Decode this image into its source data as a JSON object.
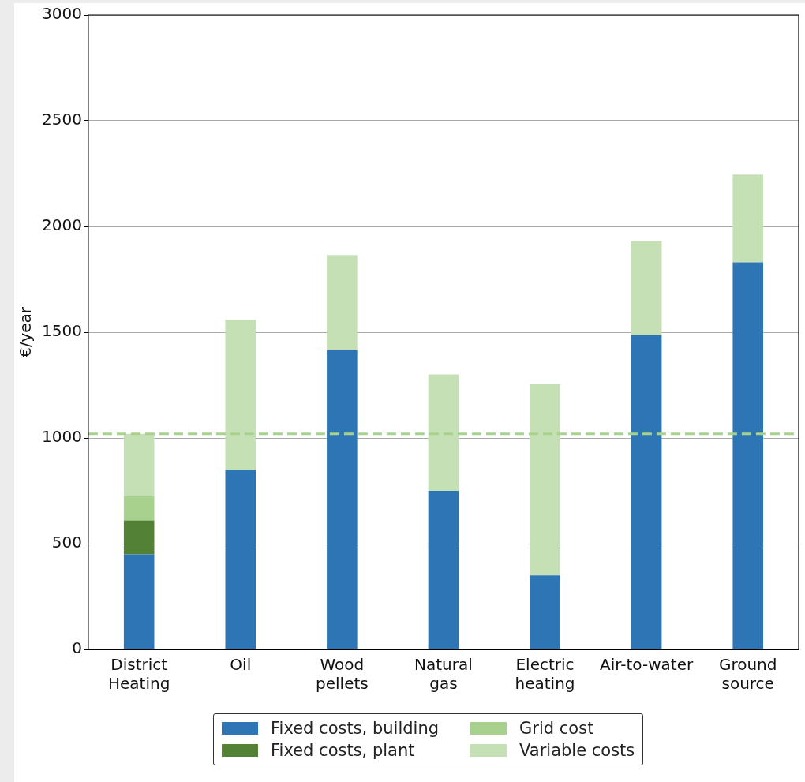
{
  "chart_data": {
    "type": "bar",
    "stacked": true,
    "ylabel": "€/year",
    "categories": [
      "District Heating",
      "Oil",
      "Wood pellets",
      "Natural gas",
      "Electric heating",
      "Air-to-water",
      "Ground source"
    ],
    "series": [
      {
        "name": "Fixed costs, building",
        "color": "#2e75b6",
        "values": [
          450,
          850,
          1415,
          750,
          350,
          1485,
          1830
        ]
      },
      {
        "name": "Fixed costs, plant",
        "color": "#538135",
        "values": [
          160,
          null,
          null,
          null,
          null,
          null,
          null
        ]
      },
      {
        "name": "Grid cost",
        "color": "#a9d18e",
        "values": [
          115,
          null,
          null,
          null,
          null,
          null,
          null
        ]
      },
      {
        "name": "Variable costs",
        "color": "#c5e0b4",
        "values": [
          295,
          710,
          450,
          550,
          905,
          445,
          415
        ]
      }
    ],
    "ylim": [
      0,
      3000
    ],
    "yticks": [
      0,
      500,
      1000,
      1500,
      2000,
      2500,
      3000
    ],
    "grid": "y",
    "legend": "bottom",
    "ref_lines": [
      {
        "axis": "y",
        "value": 1020,
        "color": "#a9d18e",
        "line_style": "dashed"
      }
    ]
  }
}
